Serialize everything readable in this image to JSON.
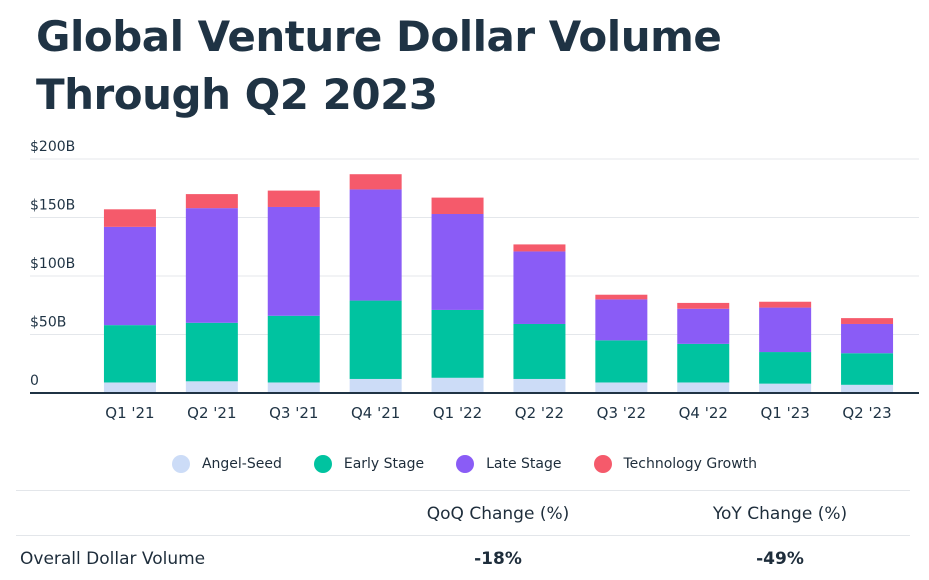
{
  "title": "Global Venture Dollar Volume Through Q2 2023",
  "colors": {
    "angel_seed": "#ccdcf7",
    "early_stage": "#00c3a0",
    "late_stage": "#8a5cf6",
    "technology_growth": "#f55a6b",
    "grid": "#e4e7eb",
    "axis": "#1f3344"
  },
  "chart_data": {
    "type": "bar",
    "stacked": true,
    "categories": [
      "Q1 '21",
      "Q2 '21",
      "Q3 '21",
      "Q4 '21",
      "Q1 '22",
      "Q2 '22",
      "Q3 '22",
      "Q4 '22",
      "Q1 '23",
      "Q2 '23"
    ],
    "series": [
      {
        "name": "Angel-Seed",
        "color": "#ccdcf7",
        "values": [
          9,
          10,
          9,
          12,
          13,
          12,
          9,
          9,
          8,
          7
        ]
      },
      {
        "name": "Early Stage",
        "color": "#00c3a0",
        "values": [
          49,
          50,
          57,
          67,
          58,
          47,
          36,
          33,
          27,
          27
        ]
      },
      {
        "name": "Late Stage",
        "color": "#8a5cf6",
        "values": [
          84,
          98,
          93,
          95,
          82,
          62,
          35,
          30,
          38,
          25
        ]
      },
      {
        "name": "Technology Growth",
        "color": "#f55a6b",
        "values": [
          15,
          12,
          14,
          13,
          14,
          6,
          4,
          5,
          5,
          5
        ]
      }
    ],
    "ylim": [
      0,
      200
    ],
    "yticks": [
      0,
      50,
      100,
      150,
      200
    ],
    "ytick_labels": [
      "0",
      "$50B",
      "$100B",
      "$150B",
      "$200B"
    ],
    "xlabel": "",
    "ylabel": "",
    "grid": true,
    "legend_position": "bottom"
  },
  "table": {
    "headers": [
      "",
      "QoQ Change (%)",
      "YoY Change (%)"
    ],
    "rows": [
      {
        "label": "Overall Dollar Volume",
        "qoq": "-18%",
        "yoy": "-49%"
      }
    ]
  }
}
